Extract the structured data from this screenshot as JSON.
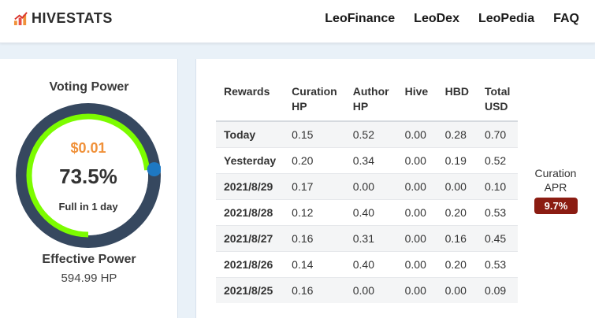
{
  "brand": {
    "name": "HIVESTATS"
  },
  "nav": {
    "items": [
      "LeoFinance",
      "LeoDex",
      "LeoPedia",
      "FAQ"
    ]
  },
  "voting_power": {
    "title": "Voting Power",
    "usd_value": "$0.01",
    "percent_label": "73.5%",
    "percent": 73.5,
    "recharge_label": "Full in 1 day"
  },
  "effective_power": {
    "title": "Effective Power",
    "value": "594.99 HP"
  },
  "rewards_table": {
    "headers": [
      "Rewards",
      "Curation HP",
      "Author HP",
      "Hive",
      "HBD",
      "Total USD"
    ],
    "rows": [
      [
        "Today",
        "0.15",
        "0.52",
        "0.00",
        "0.28",
        "0.70"
      ],
      [
        "Yesterday",
        "0.20",
        "0.34",
        "0.00",
        "0.19",
        "0.52"
      ],
      [
        "2021/8/29",
        "0.17",
        "0.00",
        "0.00",
        "0.00",
        "0.10"
      ],
      [
        "2021/8/28",
        "0.12",
        "0.40",
        "0.00",
        "0.20",
        "0.53"
      ],
      [
        "2021/8/27",
        "0.16",
        "0.31",
        "0.00",
        "0.16",
        "0.45"
      ],
      [
        "2021/8/26",
        "0.14",
        "0.40",
        "0.00",
        "0.20",
        "0.53"
      ],
      [
        "2021/8/25",
        "0.16",
        "0.00",
        "0.00",
        "0.00",
        "0.09"
      ]
    ]
  },
  "curation_apr": {
    "label": "Curation APR",
    "value": "9.7%"
  },
  "colors": {
    "gauge_track": "#36485f",
    "gauge_fill": "#7cfc00",
    "gauge_knob": "#1e78c2",
    "usd_orange": "#f0913a",
    "apr_badge": "#8b1c12"
  }
}
